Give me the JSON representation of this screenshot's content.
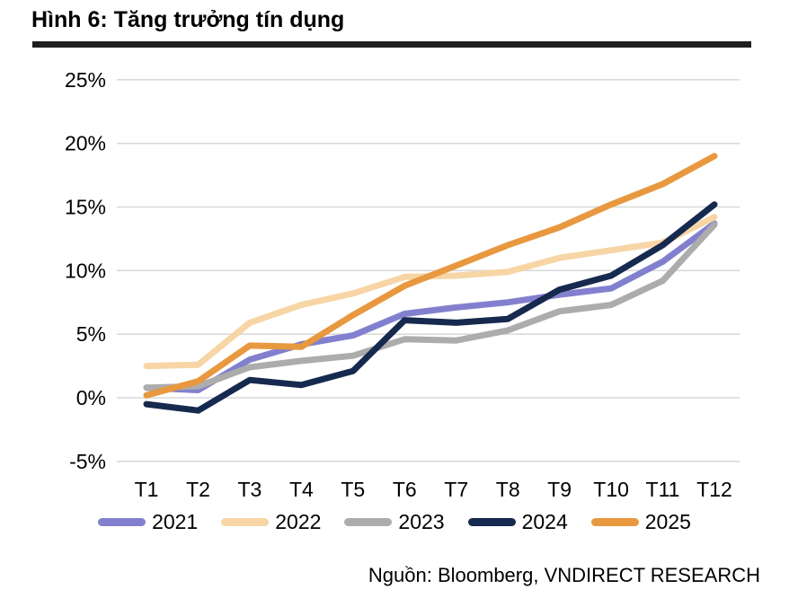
{
  "figure": {
    "title": "Hình 6: Tăng trưởng tín dụng",
    "source": "Nguồn: Bloomberg, VNDIRECT RESEARCH"
  },
  "chart_data": {
    "type": "line",
    "title": "Hình 6: Tăng trưởng tín dụng",
    "x_categories": [
      "T1",
      "T2",
      "T3",
      "T4",
      "T5",
      "T6",
      "T7",
      "T8",
      "T9",
      "T10",
      "T11",
      "T12"
    ],
    "y_tick_labels": [
      "25%",
      "20%",
      "15%",
      "10%",
      "5%",
      "0%",
      "-5%"
    ],
    "y_tick_values": [
      25,
      20,
      15,
      10,
      5,
      0,
      -5
    ],
    "ylim": [
      -5,
      25
    ],
    "grid": "horizontal",
    "gridline_color": "#d9d9d9",
    "legend_position": "bottom",
    "series": [
      {
        "name": "2021",
        "color": "#8280ce",
        "values": [
          0.8,
          0.6,
          3.0,
          4.2,
          4.9,
          6.6,
          7.1,
          7.5,
          8.1,
          8.6,
          10.7,
          13.7
        ]
      },
      {
        "name": "2022",
        "color": "#f7d5a5",
        "values": [
          2.5,
          2.6,
          5.9,
          7.3,
          8.2,
          9.5,
          9.6,
          9.9,
          11.0,
          11.6,
          12.2,
          14.2
        ]
      },
      {
        "name": "2023",
        "color": "#acacac",
        "values": [
          0.8,
          0.9,
          2.4,
          2.9,
          3.3,
          4.6,
          4.5,
          5.3,
          6.8,
          7.3,
          9.2,
          13.6
        ]
      },
      {
        "name": "2024",
        "color": "#16294e",
        "values": [
          -0.5,
          -1.0,
          1.4,
          1.0,
          2.1,
          6.1,
          5.9,
          6.2,
          8.5,
          9.6,
          12.0,
          15.2
        ]
      },
      {
        "name": "2025",
        "color": "#e8983f",
        "values": [
          0.2,
          1.3,
          4.1,
          4.0,
          6.5,
          8.8,
          10.4,
          12.0,
          13.4,
          15.2,
          16.8,
          19.0
        ]
      }
    ],
    "source": "Nguồn: Bloomberg, VNDIRECT RESEARCH"
  }
}
